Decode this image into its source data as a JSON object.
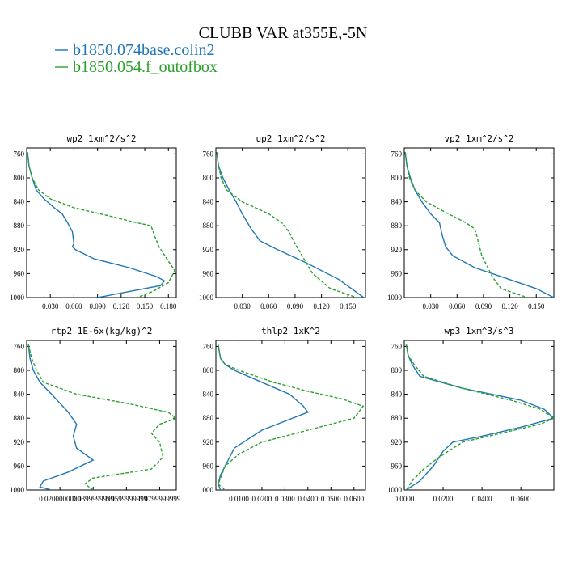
{
  "figure": {
    "title": "CLUBB VAR at355E,-5N",
    "legend": [
      {
        "label": "b1850.074base.colin2",
        "color": "#1f77b4",
        "dash": "solid"
      },
      {
        "label": "b1850.054.f_outofbox",
        "color": "#2ca02c",
        "dash": "dashed"
      }
    ]
  },
  "chart_data": [
    {
      "type": "line",
      "title": "wp2  1xm^2/s^2",
      "xlim": [
        0,
        0.19
      ],
      "ylim": [
        1000,
        750
      ],
      "y_inverted": true,
      "xticks": [
        0.03,
        0.06,
        0.09,
        0.12,
        0.15,
        0.18
      ],
      "xtick_labels": [
        "0.030",
        "0.060",
        "0.090",
        "0.120",
        "0.150",
        "0.180"
      ],
      "yticks": [
        760,
        800,
        840,
        880,
        920,
        960,
        1000
      ],
      "series": [
        {
          "x": [
            0.001,
            0.003,
            0.007,
            0.012,
            0.022,
            0.035,
            0.045,
            0.052,
            0.058,
            0.06,
            0.058,
            0.062,
            0.085,
            0.13,
            0.165,
            0.175,
            0.17,
            0.13,
            0.09
          ],
          "y": [
            757,
            780,
            800,
            820,
            835,
            850,
            860,
            875,
            890,
            910,
            915,
            920,
            935,
            950,
            965,
            972,
            980,
            990,
            1000
          ]
        },
        {
          "x": [
            0.001,
            0.003,
            0.007,
            0.015,
            0.03,
            0.06,
            0.1,
            0.14,
            0.158,
            0.162,
            0.168,
            0.178,
            0.188,
            0.18,
            0.16,
            0.14
          ],
          "y": [
            757,
            780,
            800,
            820,
            835,
            850,
            862,
            875,
            880,
            895,
            915,
            935,
            955,
            975,
            990,
            1000
          ]
        }
      ]
    },
    {
      "type": "line",
      "title": "up2  1xm^2/s^2",
      "xlim": [
        0,
        0.17
      ],
      "ylim": [
        1000,
        750
      ],
      "y_inverted": true,
      "xticks": [
        0.03,
        0.06,
        0.09,
        0.12,
        0.15
      ],
      "xtick_labels": [
        "0.030",
        "0.060",
        "0.090",
        "0.120",
        "0.150"
      ],
      "yticks": [
        760,
        800,
        840,
        880,
        920,
        960,
        1000
      ],
      "series": [
        {
          "x": [
            0.001,
            0.003,
            0.008,
            0.015,
            0.023,
            0.03,
            0.04,
            0.05,
            0.07,
            0.1,
            0.14,
            0.168
          ],
          "y": [
            757,
            780,
            800,
            820,
            840,
            860,
            885,
            905,
            920,
            940,
            970,
            1000
          ]
        },
        {
          "x": [
            0.001,
            0.003,
            0.006,
            0.012,
            0.03,
            0.06,
            0.075,
            0.083,
            0.09,
            0.1,
            0.11,
            0.13,
            0.16
          ],
          "y": [
            757,
            780,
            800,
            820,
            840,
            860,
            875,
            890,
            910,
            935,
            960,
            985,
            1000
          ]
        }
      ]
    },
    {
      "type": "line",
      "title": "vp2  1xm^2/s^2",
      "xlim": [
        0,
        0.17
      ],
      "ylim": [
        1000,
        750
      ],
      "y_inverted": true,
      "xticks": [
        0.03,
        0.06,
        0.09,
        0.12,
        0.15
      ],
      "xtick_labels": [
        "0.030",
        "0.060",
        "0.090",
        "0.120",
        "0.150"
      ],
      "yticks": [
        760,
        800,
        840,
        880,
        920,
        960,
        1000
      ],
      "series": [
        {
          "x": [
            0.001,
            0.003,
            0.007,
            0.012,
            0.02,
            0.03,
            0.04,
            0.043,
            0.047,
            0.055,
            0.08,
            0.12,
            0.15,
            0.17
          ],
          "y": [
            757,
            780,
            800,
            820,
            840,
            860,
            875,
            895,
            915,
            930,
            950,
            970,
            985,
            1000
          ]
        },
        {
          "x": [
            0.001,
            0.003,
            0.006,
            0.012,
            0.025,
            0.05,
            0.07,
            0.08,
            0.083,
            0.088,
            0.095,
            0.1,
            0.11,
            0.14
          ],
          "y": [
            757,
            780,
            800,
            820,
            840,
            860,
            875,
            885,
            900,
            930,
            950,
            965,
            985,
            1000
          ]
        }
      ]
    },
    {
      "type": "line",
      "title": "rtp2  1E-6x(kg/kg)^2",
      "xlim": [
        0,
        0.09
      ],
      "ylim": [
        1000,
        750
      ],
      "y_inverted": true,
      "xticks": [
        0.02,
        0.04,
        0.06,
        0.08
      ],
      "xtick_labels": [
        "0.0200000000",
        "0.0399999999",
        "0.0599999999",
        "0.0799999999"
      ],
      "yticks": [
        760,
        800,
        840,
        880,
        920,
        960,
        1000
      ],
      "series": [
        {
          "x": [
            0.001,
            0.002,
            0.004,
            0.008,
            0.015,
            0.025,
            0.03,
            0.028,
            0.03,
            0.04,
            0.025,
            0.01,
            0.008,
            0.015
          ],
          "y": [
            757,
            780,
            800,
            820,
            840,
            870,
            890,
            910,
            930,
            950,
            970,
            985,
            995,
            1000
          ]
        },
        {
          "x": [
            0.001,
            0.003,
            0.006,
            0.01,
            0.03,
            0.06,
            0.085,
            0.09,
            0.08,
            0.075,
            0.08,
            0.082,
            0.075,
            0.04,
            0.035,
            0.04
          ],
          "y": [
            757,
            780,
            800,
            820,
            840,
            855,
            870,
            880,
            890,
            905,
            920,
            945,
            965,
            980,
            990,
            1000
          ]
        }
      ]
    },
    {
      "type": "line",
      "title": "thlp2  1xK^2",
      "xlim": [
        0,
        0.065
      ],
      "ylim": [
        1000,
        750
      ],
      "y_inverted": true,
      "xticks": [
        0.01,
        0.02,
        0.03,
        0.04,
        0.05,
        0.06
      ],
      "xtick_labels": [
        "0.0100",
        "0.0200",
        "0.0300",
        "0.0400",
        "0.0500",
        "0.0600"
      ],
      "yticks": [
        760,
        800,
        840,
        880,
        920,
        960,
        1000
      ],
      "series": [
        {
          "x": [
            0.001,
            0.002,
            0.004,
            0.008,
            0.02,
            0.032,
            0.038,
            0.04,
            0.02,
            0.008,
            0.004,
            0.002,
            0.001,
            0.002
          ],
          "y": [
            757,
            780,
            790,
            800,
            820,
            840,
            860,
            870,
            900,
            930,
            960,
            975,
            990,
            1000
          ]
        },
        {
          "x": [
            0.001,
            0.002,
            0.004,
            0.01,
            0.025,
            0.04,
            0.055,
            0.064,
            0.06,
            0.04,
            0.02,
            0.01,
            0.004,
            0.002,
            0.001,
            0.004
          ],
          "y": [
            757,
            780,
            790,
            800,
            820,
            835,
            848,
            860,
            880,
            900,
            920,
            940,
            960,
            980,
            990,
            1000
          ]
        }
      ]
    },
    {
      "type": "line",
      "title": "wp3  1xm^3/s^3",
      "xlim": [
        0,
        0.077
      ],
      "ylim": [
        1000,
        750
      ],
      "y_inverted": true,
      "xticks": [
        0,
        0.02,
        0.04,
        0.06
      ],
      "xtick_labels": [
        "0.0000",
        "0.0200",
        "0.0400",
        "0.0600"
      ],
      "yticks": [
        760,
        800,
        840,
        880,
        920,
        960,
        1000
      ],
      "series": [
        {
          "x": [
            0.001,
            0.002,
            0.004,
            0.008,
            0.03,
            0.06,
            0.072,
            0.077,
            0.06,
            0.04,
            0.025,
            0.02,
            0.015,
            0.008,
            0.001
          ],
          "y": [
            757,
            775,
            790,
            810,
            830,
            850,
            865,
            880,
            895,
            910,
            920,
            935,
            960,
            985,
            1000
          ]
        },
        {
          "x": [
            0.001,
            0.002,
            0.005,
            0.01,
            0.03,
            0.055,
            0.07,
            0.077,
            0.07,
            0.05,
            0.03,
            0.018,
            0.01,
            0.004,
            0.001
          ],
          "y": [
            757,
            775,
            790,
            810,
            830,
            850,
            865,
            880,
            890,
            905,
            920,
            945,
            965,
            985,
            1000
          ]
        }
      ]
    }
  ]
}
